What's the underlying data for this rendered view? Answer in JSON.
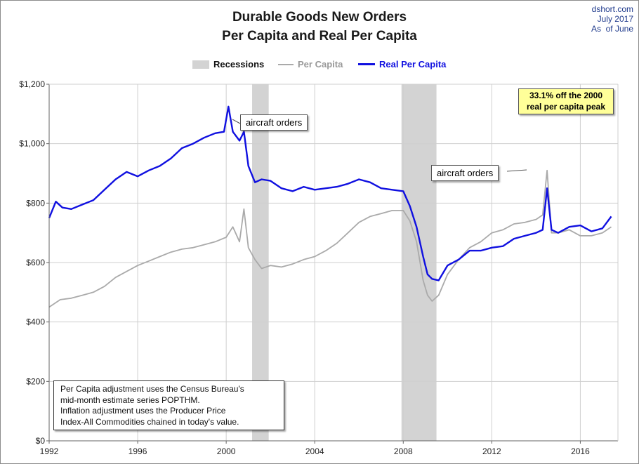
{
  "source": {
    "site": "dshort.com",
    "date": "July 2017",
    "as_of": "As  of June"
  },
  "colors": {
    "real_per_capita": "#1010e0",
    "per_capita": "#aaaaaa",
    "recessions": "#d3d3d3"
  },
  "legend": {
    "recessions": "Recessions",
    "per_capita": "Per Capita",
    "real_per_capita": "Real Per Capita"
  },
  "annotations": {
    "aircraft_1": "aircraft orders",
    "aircraft_2": "aircraft orders",
    "peak_line1": "33.1% off the 2000",
    "peak_line2": "real per capita peak",
    "note_lines": [
      "Per Capita adjustment uses the Census Bureau's",
      "mid-month estimate series POPTHM.",
      "Inflation adjustment uses the Producer Price",
      "Index-All Commodities chained in today's value."
    ]
  },
  "chart_data": {
    "type": "line",
    "title": "Durable Goods New Orders",
    "subtitle": "Per Capita and Real Per Capita",
    "xlim": [
      1992,
      2017.7
    ],
    "ylim": [
      0,
      1200
    ],
    "x_ticks": [
      "1992",
      "1996",
      "2000",
      "2004",
      "2008",
      "2012",
      "2016"
    ],
    "y_ticks": [
      "$0",
      "$200",
      "$400",
      "$600",
      "$800",
      "$1,000",
      "$1,200"
    ],
    "grid": true,
    "legend_position": "top",
    "recessions": [
      {
        "start": 2001.17,
        "end": 2001.92
      },
      {
        "start": 2007.92,
        "end": 2009.5
      }
    ],
    "series": [
      {
        "name": "Real Per Capita",
        "x": [
          1992.0,
          1992.3,
          1992.6,
          1993.0,
          1993.5,
          1994.0,
          1994.5,
          1995.0,
          1995.5,
          1996.0,
          1996.5,
          1997.0,
          1997.5,
          1998.0,
          1998.5,
          1999.0,
          1999.5,
          1999.9,
          2000.1,
          2000.3,
          2000.6,
          2000.8,
          2001.0,
          2001.3,
          2001.6,
          2002.0,
          2002.5,
          2003.0,
          2003.5,
          2004.0,
          2004.5,
          2005.0,
          2005.5,
          2006.0,
          2006.5,
          2007.0,
          2007.5,
          2008.0,
          2008.3,
          2008.6,
          2008.9,
          2009.1,
          2009.3,
          2009.6,
          2010.0,
          2010.5,
          2011.0,
          2011.5,
          2012.0,
          2012.5,
          2013.0,
          2013.5,
          2014.0,
          2014.3,
          2014.5,
          2014.7,
          2015.0,
          2015.5,
          2016.0,
          2016.5,
          2017.0,
          2017.4
        ],
        "values": [
          750,
          805,
          785,
          780,
          795,
          810,
          845,
          880,
          905,
          890,
          910,
          925,
          950,
          985,
          1000,
          1020,
          1035,
          1040,
          1125,
          1040,
          1010,
          1040,
          925,
          870,
          880,
          875,
          850,
          840,
          855,
          845,
          850,
          855,
          865,
          880,
          870,
          850,
          845,
          840,
          790,
          720,
          620,
          560,
          545,
          540,
          590,
          610,
          640,
          640,
          650,
          655,
          680,
          690,
          700,
          710,
          850,
          710,
          700,
          720,
          725,
          705,
          715,
          755
        ]
      },
      {
        "name": "Per Capita",
        "x": [
          1992.0,
          1992.5,
          1993.0,
          1993.5,
          1994.0,
          1994.5,
          1995.0,
          1995.5,
          1996.0,
          1996.5,
          1997.0,
          1997.5,
          1998.0,
          1998.5,
          1999.0,
          1999.5,
          2000.0,
          2000.3,
          2000.6,
          2000.8,
          2001.0,
          2001.3,
          2001.6,
          2002.0,
          2002.5,
          2003.0,
          2003.5,
          2004.0,
          2004.5,
          2005.0,
          2005.5,
          2006.0,
          2006.5,
          2007.0,
          2007.5,
          2008.0,
          2008.3,
          2008.6,
          2008.9,
          2009.1,
          2009.3,
          2009.6,
          2010.0,
          2010.5,
          2011.0,
          2011.5,
          2012.0,
          2012.5,
          2013.0,
          2013.5,
          2014.0,
          2014.3,
          2014.5,
          2014.7,
          2015.0,
          2015.5,
          2016.0,
          2016.5,
          2017.0,
          2017.4
        ],
        "values": [
          450,
          475,
          480,
          490,
          500,
          520,
          550,
          570,
          590,
          605,
          620,
          635,
          645,
          650,
          660,
          670,
          685,
          720,
          670,
          780,
          650,
          610,
          580,
          590,
          585,
          595,
          610,
          620,
          640,
          665,
          700,
          735,
          755,
          765,
          775,
          775,
          740,
          670,
          540,
          490,
          470,
          490,
          560,
          610,
          650,
          670,
          700,
          710,
          730,
          735,
          745,
          760,
          910,
          700,
          700,
          710,
          690,
          690,
          700,
          720
        ]
      }
    ]
  }
}
